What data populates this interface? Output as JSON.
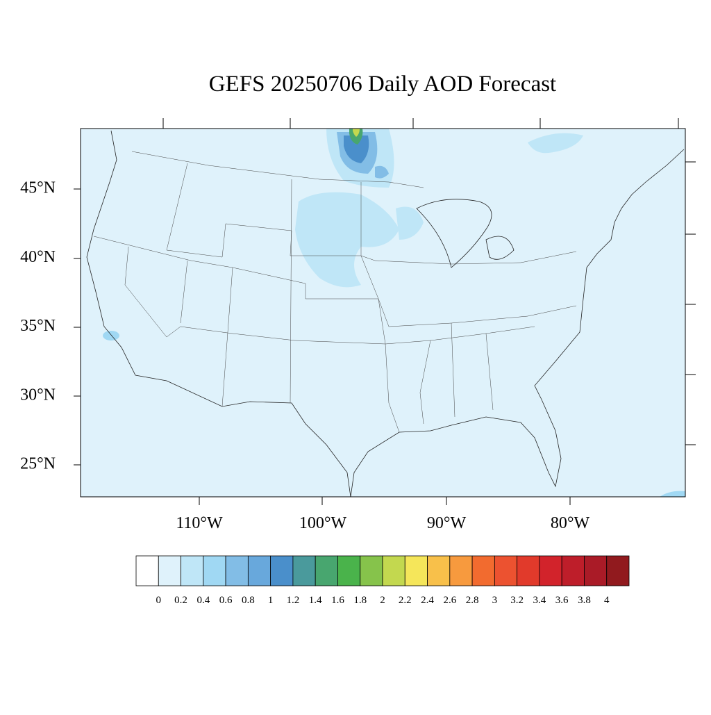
{
  "title": "GEFS 20250706 Daily AOD Forecast",
  "map": {
    "lat_labels": [
      "45°N",
      "40°N",
      "35°N",
      "30°N",
      "25°N"
    ],
    "lon_labels": [
      "110°W",
      "100°W",
      "90°W",
      "80°W"
    ]
  },
  "colorbar": {
    "colors": [
      "#ffffff",
      "#dff2fb",
      "#bfe6f7",
      "#a0d8f3",
      "#82bde6",
      "#68a8dc",
      "#4a8fcb",
      "#4a9a9c",
      "#48a66f",
      "#4ab34b",
      "#86c34b",
      "#c3d84f",
      "#f5e65a",
      "#f8c04a",
      "#f79a3e",
      "#f26b2f",
      "#ec5230",
      "#e13a2b",
      "#d2232b",
      "#be1e2a",
      "#aa1b27",
      "#911a1e"
    ],
    "labels": [
      0,
      0.2,
      0.4,
      0.6,
      0.8,
      1,
      1.2,
      1.4,
      1.6,
      1.8,
      2,
      2.2,
      2.4,
      2.6,
      2.8,
      3,
      3.2,
      3.4,
      3.6,
      3.8,
      4
    ]
  }
}
